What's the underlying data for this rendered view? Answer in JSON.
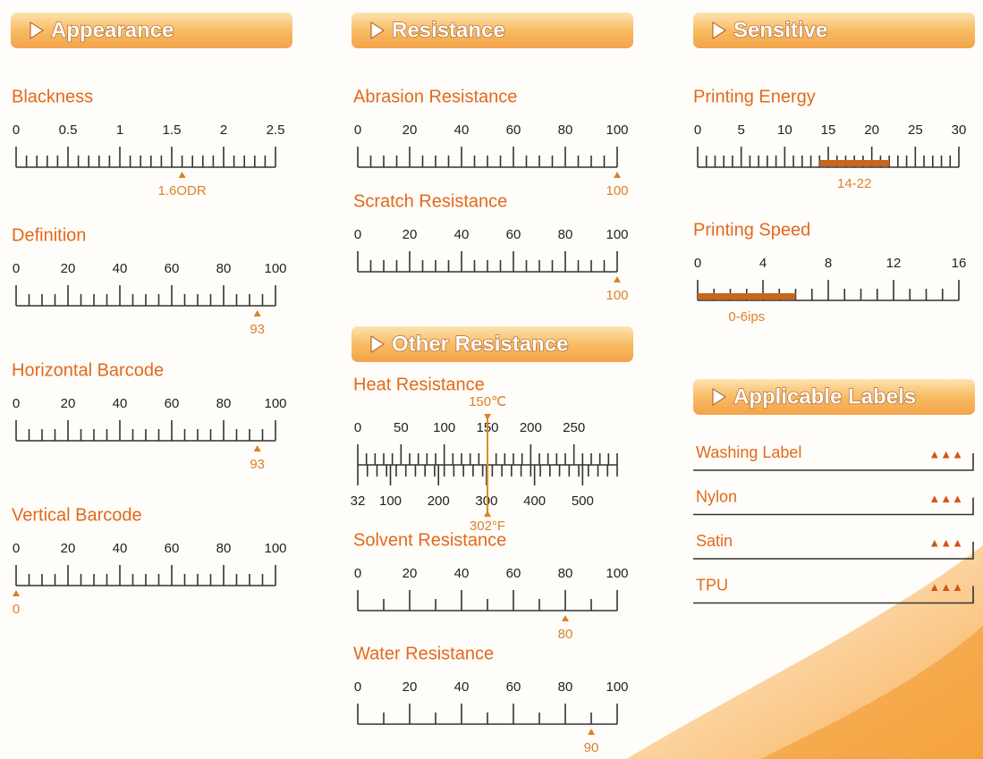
{
  "columns": [
    {
      "title": "Appearance",
      "gauges": [
        {
          "title": "Blackness",
          "ticks": [
            0,
            0.5,
            1,
            1.5,
            2,
            2.5
          ],
          "lim": [
            0,
            2.5
          ],
          "minor_step": 0.1,
          "value": 1.6,
          "value_label": "1.6ODR"
        },
        {
          "title": "Definition",
          "ticks": [
            0,
            20,
            40,
            60,
            80,
            100
          ],
          "lim": [
            0,
            100
          ],
          "minor_step": 5,
          "value": 93
        },
        {
          "title": "Horizontal Barcode",
          "ticks": [
            0,
            20,
            40,
            60,
            80,
            100
          ],
          "lim": [
            0,
            100
          ],
          "minor_step": 5,
          "value": 93
        },
        {
          "title": "Vertical Barcode",
          "ticks": [
            0,
            20,
            40,
            60,
            80,
            100
          ],
          "lim": [
            0,
            100
          ],
          "minor_step": 5,
          "value": 0
        }
      ]
    },
    {
      "title": "Resistance",
      "gauges": [
        {
          "title": "Abrasion Resistance",
          "ticks": [
            0,
            20,
            40,
            60,
            80,
            100
          ],
          "lim": [
            0,
            100
          ],
          "minor_step": 5,
          "value": 100
        },
        {
          "title": "Scratch Resistance",
          "ticks": [
            0,
            20,
            40,
            60,
            80,
            100
          ],
          "lim": [
            0,
            100
          ],
          "minor_step": 5,
          "value": 100
        }
      ]
    },
    {
      "title": "Sensitive",
      "gauges": [
        {
          "title": "Printing Energy",
          "ticks": [
            0,
            5,
            10,
            15,
            20,
            25,
            30
          ],
          "lim": [
            0,
            30
          ],
          "minor_step": 1,
          "range": [
            14,
            22
          ],
          "range_label": "14-22"
        },
        {
          "title": "Printing Speed",
          "ticks": [
            0,
            4,
            8,
            12,
            16
          ],
          "lim": [
            0,
            16
          ],
          "minor_step": 1,
          "range": [
            0,
            6
          ],
          "range_label": "0-6ips"
        }
      ]
    }
  ],
  "other": {
    "title": "Other Resistance",
    "heat": {
      "title": "Heat Resistance",
      "celsius": {
        "ticks": [
          0,
          50,
          100,
          150,
          200,
          250
        ],
        "lim": [
          0,
          300
        ],
        "minor_step": 10,
        "value": 150,
        "value_label": "150℃"
      },
      "fahrenheit": {
        "ticks": [
          32,
          100,
          200,
          300,
          400,
          500
        ],
        "lim": [
          32,
          572
        ],
        "minor_step": 20,
        "value": 302,
        "value_label": "302°F"
      }
    },
    "gauges": [
      {
        "title": "Solvent Resistance",
        "ticks": [
          0,
          20,
          40,
          60,
          80,
          100
        ],
        "lim": [
          0,
          100
        ],
        "minor_step": 10,
        "value": 80
      },
      {
        "title": "Water Resistance",
        "ticks": [
          0,
          20,
          40,
          60,
          80,
          100
        ],
        "lim": [
          0,
          100
        ],
        "minor_step": 10,
        "value": 90
      }
    ]
  },
  "labels": {
    "title": "Applicable Labels",
    "items": [
      {
        "name": "Washing Label",
        "rating": "▲▲▲"
      },
      {
        "name": "Nylon",
        "rating": "▲▲▲"
      },
      {
        "name": "Satin",
        "rating": "▲▲▲"
      },
      {
        "name": "TPU",
        "rating": "▲▲▲"
      }
    ]
  }
}
